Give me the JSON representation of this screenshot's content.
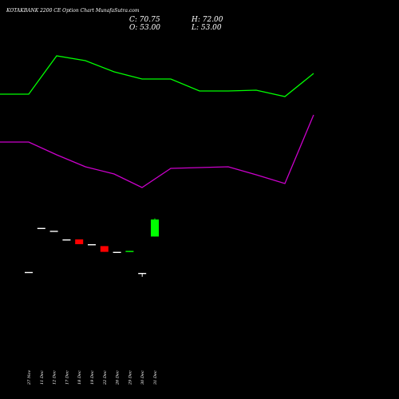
{
  "header": {
    "title": "KOTAKBANK 2200  CE Option  Chart MunafaSutra.com",
    "close_text": "C: 70.75",
    "high_text": "H: 72.00",
    "open_text": "O: 53.00",
    "low_text": "L: 53.00"
  },
  "chart_data": {
    "type": "candlestick",
    "x_ticks": [
      "27 Nov",
      "11 Dec",
      "12 Dec",
      "17 Dec",
      "18 Dec",
      "19 Dec",
      "22 Dec",
      "26 Dec",
      "29 Dec",
      "30 Dec",
      "31 Dec"
    ],
    "candles": [
      {
        "date": "27 Nov",
        "open": 16,
        "high": 16,
        "low": 16,
        "close": 16
      },
      {
        "date": "11 Dec",
        "open": 62,
        "high": 62,
        "low": 62,
        "close": 62
      },
      {
        "date": "12 Dec",
        "open": 59,
        "high": 59,
        "low": 59,
        "close": 59
      },
      {
        "date": "17 Dec",
        "open": 50,
        "high": 50,
        "low": 50,
        "close": 50
      },
      {
        "date": "18 Dec",
        "open": 50,
        "high": 50,
        "low": 45,
        "close": 45
      },
      {
        "date": "19 Dec",
        "open": 45,
        "high": 45,
        "low": 45,
        "close": 45
      },
      {
        "date": "22 Dec",
        "open": 43,
        "high": 43,
        "low": 37,
        "close": 37
      },
      {
        "date": "26 Dec",
        "open": 37,
        "high": 37,
        "low": 37,
        "close": 37
      },
      {
        "date": "29 Dec",
        "open": 37,
        "high": 38,
        "low": 37,
        "close": 38
      },
      {
        "date": "30 Dec",
        "open": 15,
        "high": 15,
        "low": 11,
        "close": 15
      },
      {
        "date": "31 Dec",
        "open": 53,
        "high": 72,
        "low": 53,
        "close": 70.75
      }
    ],
    "ylim": [
      0,
      100
    ],
    "upper_band": [
      118,
      118,
      70,
      76,
      90,
      99,
      99,
      114,
      114,
      113,
      121,
      92
    ],
    "lower_band": [
      178,
      178,
      194,
      209,
      218,
      235,
      211,
      210,
      209,
      219,
      230,
      144
    ],
    "upper_band_color": "#00ff00",
    "lower_band_color": "#cc00cc",
    "up_color": "#00ff00",
    "down_color": "#ff0000",
    "flat_color": "#ffffff",
    "background": "#000000",
    "grid": false
  }
}
